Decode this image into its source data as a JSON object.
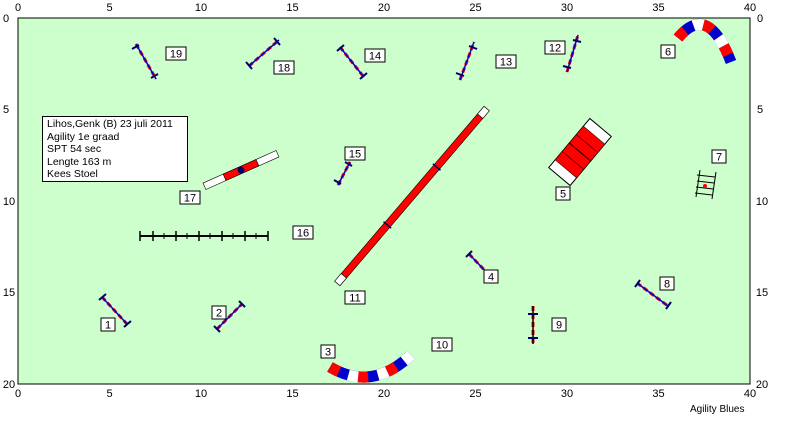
{
  "course": {
    "info_lines": [
      "Lihos,Genk (B) 23 juli 2011",
      "Agility 1e graad",
      "SPT 54 sec",
      "Lengte 163 m",
      "Kees Stoel"
    ],
    "credit": "Agility Blues"
  },
  "axes": {
    "x_ticks": [
      0,
      5,
      10,
      15,
      20,
      25,
      30,
      35,
      40
    ],
    "y_ticks": [
      0,
      5,
      10,
      15,
      20
    ],
    "x_range": [
      0,
      40
    ],
    "y_range": [
      0,
      20
    ],
    "field_color": "#ccffcc"
  },
  "obstacles": [
    {
      "number": "1",
      "type": "hurdle"
    },
    {
      "number": "2",
      "type": "hurdle"
    },
    {
      "number": "3",
      "type": "tunnel"
    },
    {
      "number": "4",
      "type": "hurdle"
    },
    {
      "number": "5",
      "type": "a-frame"
    },
    {
      "number": "6",
      "type": "tunnel"
    },
    {
      "number": "7",
      "type": "tire"
    },
    {
      "number": "8",
      "type": "hurdle"
    },
    {
      "number": "9",
      "type": "hurdle"
    },
    {
      "number": "10",
      "type": "tunnel"
    },
    {
      "number": "11",
      "type": "dog-walk"
    },
    {
      "number": "12",
      "type": "hurdle"
    },
    {
      "number": "13",
      "type": "hurdle"
    },
    {
      "number": "14",
      "type": "hurdle"
    },
    {
      "number": "15",
      "type": "hurdle"
    },
    {
      "number": "16",
      "type": "weave-poles"
    },
    {
      "number": "17",
      "type": "seesaw"
    },
    {
      "number": "18",
      "type": "hurdle"
    },
    {
      "number": "19",
      "type": "hurdle"
    }
  ],
  "colors": {
    "obstacle_red": "#ff0000",
    "obstacle_blue": "#0000cc",
    "pole_dark": "#000066",
    "weave_black": "#000000"
  }
}
